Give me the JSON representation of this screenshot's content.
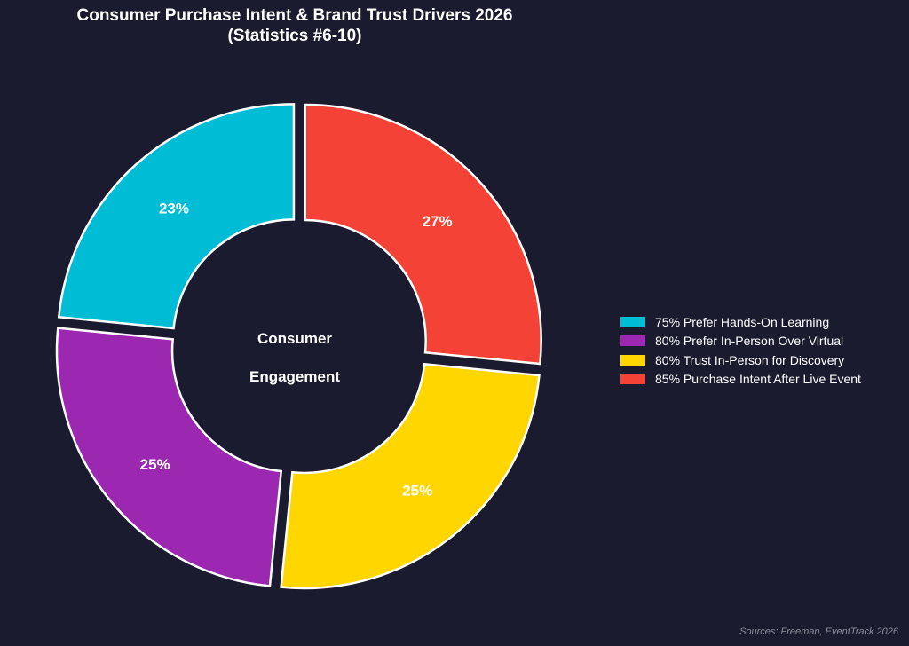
{
  "chart_data": {
    "type": "pie",
    "title": "Consumer Purchase Intent & Brand Trust Drivers 2026",
    "subtitle": "(Statistics #6-10)",
    "center_label_line1": "Consumer",
    "center_label_line2": "Engagement",
    "source": "Sources: Freeman, EventTrack 2026",
    "legend_position": "right",
    "slices": [
      {
        "legend": "75% Prefer Hands-On Learning",
        "share_label": "23%",
        "value": 75,
        "color": "#00bcd4"
      },
      {
        "legend": "80% Prefer In-Person Over Virtual",
        "share_label": "25%",
        "value": 80,
        "color": "#9c27b0"
      },
      {
        "legend": "80% Trust In-Person for Discovery",
        "share_label": "25%",
        "value": 80,
        "color": "#ffd600"
      },
      {
        "legend": "85% Purchase Intent After Live Event",
        "share_label": "27%",
        "value": 85,
        "color": "#f44336"
      }
    ]
  }
}
